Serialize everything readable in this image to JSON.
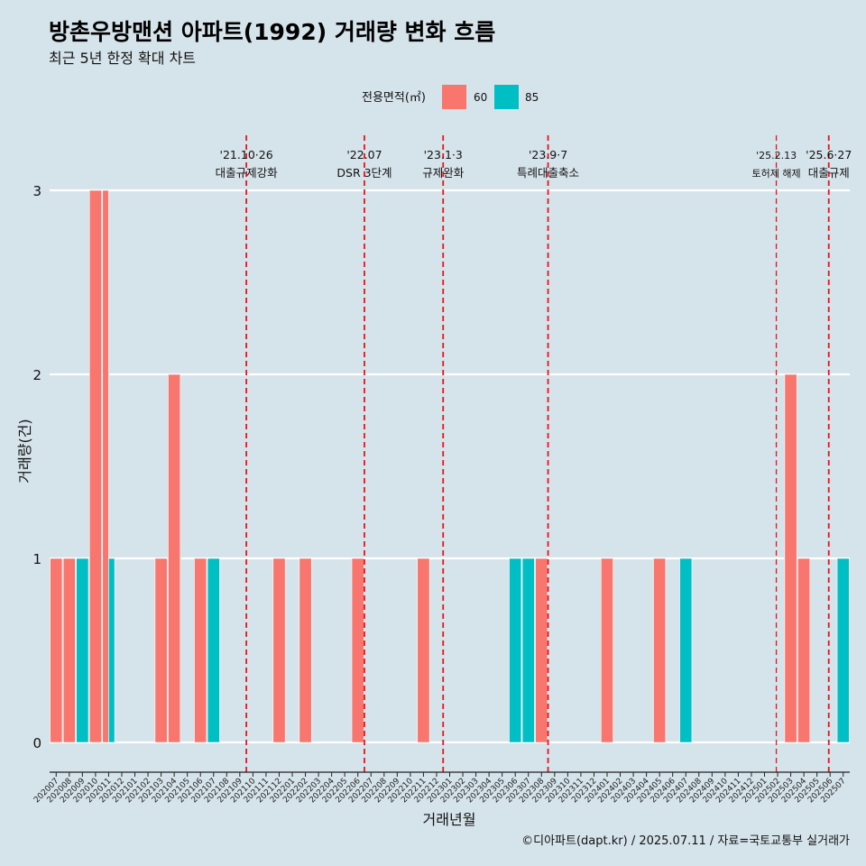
{
  "title": "방촌우방맨션 아파트(1992) 거래량 변화 흐름",
  "subtitle": "최근 5년 한정 확대 차트",
  "caption": "©디아파트(dapt.kr) / 2025.07.11 / 자료=국토교통부 실거래가",
  "colors": {
    "background": "#d5e3ea",
    "series_60": "#f8766d",
    "series_85": "#00bfc4",
    "event_line": "#e8141a",
    "grid": "#ffffff"
  },
  "chart_data": {
    "type": "bar",
    "xlabel": "거래년월",
    "ylabel": "거래량(건)",
    "ylim": [
      0,
      3
    ],
    "yticks": [
      0,
      1,
      2,
      3
    ],
    "grid": true,
    "legend": {
      "title": "전용면적(㎡)",
      "position": "top"
    },
    "categories": [
      "202007",
      "202008",
      "202009",
      "202010",
      "202011",
      "202012",
      "202101",
      "202102",
      "202103",
      "202104",
      "202105",
      "202106",
      "202107",
      "202108",
      "202109",
      "202110",
      "202111",
      "202112",
      "202201",
      "202202",
      "202203",
      "202204",
      "202205",
      "202206",
      "202207",
      "202208",
      "202209",
      "202210",
      "202211",
      "202212",
      "202301",
      "202302",
      "202303",
      "202304",
      "202305",
      "202306",
      "202307",
      "202308",
      "202309",
      "202310",
      "202311",
      "202312",
      "202401",
      "202402",
      "202403",
      "202404",
      "202405",
      "202406",
      "202407",
      "202408",
      "202409",
      "202410",
      "202411",
      "202412",
      "202501",
      "202502",
      "202503",
      "202504",
      "202505",
      "202506",
      "202507"
    ],
    "bars": [
      {
        "category": "202007",
        "series": "60",
        "value": 1
      },
      {
        "category": "202008",
        "series": "60",
        "value": 1
      },
      {
        "category": "202009",
        "series": "85",
        "value": 1
      },
      {
        "category": "202010",
        "series": "60",
        "value": 3
      },
      {
        "category": "202011",
        "series": "60",
        "value": 3
      },
      {
        "category": "202011",
        "series": "85",
        "value": 1
      },
      {
        "category": "202103",
        "series": "60",
        "value": 1
      },
      {
        "category": "202104",
        "series": "60",
        "value": 2
      },
      {
        "category": "202106",
        "series": "60",
        "value": 1
      },
      {
        "category": "202107",
        "series": "85",
        "value": 1
      },
      {
        "category": "202112",
        "series": "60",
        "value": 1
      },
      {
        "category": "202202",
        "series": "60",
        "value": 1
      },
      {
        "category": "202206",
        "series": "60",
        "value": 1
      },
      {
        "category": "202211",
        "series": "60",
        "value": 1
      },
      {
        "category": "202306",
        "series": "85",
        "value": 1
      },
      {
        "category": "202307",
        "series": "85",
        "value": 1
      },
      {
        "category": "202308",
        "series": "60",
        "value": 1
      },
      {
        "category": "202401",
        "series": "60",
        "value": 1
      },
      {
        "category": "202405",
        "series": "60",
        "value": 1
      },
      {
        "category": "202407",
        "series": "85",
        "value": 1
      },
      {
        "category": "202503",
        "series": "60",
        "value": 2
      },
      {
        "category": "202504",
        "series": "60",
        "value": 1
      },
      {
        "category": "202507",
        "series": "85",
        "value": 1
      }
    ],
    "series": [
      {
        "name": "60"
      },
      {
        "name": "85"
      }
    ],
    "events": [
      {
        "at": 15.0,
        "date": "'21.10·26",
        "label": "대출규제강화"
      },
      {
        "at": 24.0,
        "date": "'22.07",
        "label": "DSR 3단계"
      },
      {
        "at": 30.0,
        "date": "'23.1·3",
        "label": "규제완화"
      },
      {
        "at": 38.0,
        "date": "'23.9·7",
        "label": "특례대출축소"
      },
      {
        "at": 55.4,
        "date": "'25.2.13",
        "label": "토허제 해제",
        "small": true
      },
      {
        "at": 59.4,
        "date": "'25.6·27",
        "label": "대출규제"
      }
    ]
  }
}
